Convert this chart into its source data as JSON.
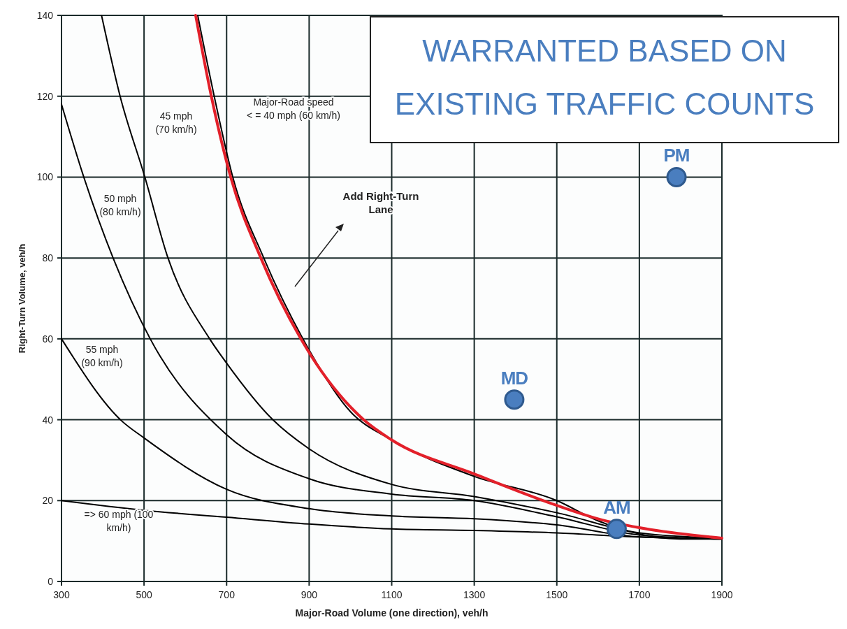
{
  "chart_data": {
    "type": "line",
    "title": "WARRANTED BASED ON\nEXISTING TRAFFIC COUNTS",
    "xlabel": "Major-Road Volume (one direction), veh/h",
    "ylabel": "Right-Turn Volume, veh/h",
    "xlim": [
      300,
      1900
    ],
    "xticks": [
      300,
      500,
      700,
      900,
      1100,
      1300,
      1500,
      1700,
      1900
    ],
    "ylim": [
      0,
      140
    ],
    "yticks": [
      0,
      20,
      40,
      60,
      80,
      100,
      120,
      140
    ],
    "grid": true,
    "marker": "none",
    "line_style": "solid",
    "series": [
      {
        "name": "45 mph\n(70 km/h)",
        "color": "#000000",
        "x": [
          397,
          442,
          502,
          558,
          659,
          700,
          812,
          900,
          1100,
          1300,
          1500,
          1700,
          1900
        ],
        "values": [
          140,
          120,
          100,
          80,
          60,
          54,
          40,
          32.8,
          24,
          21,
          17,
          12,
          10.7
        ]
      },
      {
        "name": "50 mph\n(80 km/h)",
        "color": "#000000",
        "x": [
          300,
          354,
          425,
          515,
          700,
          900,
          1100,
          1300,
          1500,
          1700,
          1900
        ],
        "values": [
          118,
          100,
          80,
          60,
          36.3,
          25.4,
          21.6,
          20,
          16,
          11.5,
          10.5
        ]
      },
      {
        "name": "55 mph\n(90 km/h)",
        "color": "#000000",
        "x": [
          300,
          447,
          500,
          700,
          900,
          1100,
          1300,
          1500,
          1700,
          1900
        ],
        "values": [
          60,
          39.6,
          35.5,
          22.8,
          18,
          16.2,
          15.5,
          14,
          11,
          10.5
        ]
      },
      {
        "name": "=> 60 mph (100\nkm/h)",
        "color": "#000000",
        "x": [
          300,
          500,
          700,
          900,
          1100,
          1300,
          1500,
          1700,
          1900
        ],
        "values": [
          20,
          17.6,
          15.9,
          14.2,
          13,
          12.6,
          12,
          11,
          10.5
        ]
      },
      {
        "name": "Major-Road speed\n< = 40 mph (60 km/h)",
        "color": "#000000",
        "x": [
          630,
          670,
          715,
          790,
          885,
          1000,
          1100,
          1300,
          1500,
          1600,
          1800,
          1900
        ],
        "values": [
          140,
          120,
          100,
          80,
          60,
          42,
          35,
          26,
          20,
          15,
          10.5,
          10.5
        ]
      },
      {
        "color": "#e3202a",
        "x": [
          625,
          663,
          710,
          783,
          880,
          1032,
          1100,
          1300,
          1500,
          1600,
          1700,
          1900
        ],
        "values": [
          140,
          120,
          100,
          80,
          60,
          40,
          35,
          26.6,
          18.8,
          15.5,
          13.3,
          10.7
        ]
      },
      {
        "type": "scatter",
        "name": "PM",
        "color": "#4a7ebf",
        "marker": "circle",
        "x": [
          1790
        ],
        "values": [
          100
        ]
      },
      {
        "type": "scatter",
        "name": "MD",
        "color": "#4a7ebf",
        "marker": "circle",
        "x": [
          1397
        ],
        "values": [
          45
        ]
      },
      {
        "type": "scatter",
        "name": "AM",
        "color": "#4a7ebf",
        "marker": "circle",
        "x": [
          1645
        ],
        "values": [
          13
        ]
      }
    ],
    "annotations": [
      "Add Right-Turn\nLane"
    ]
  }
}
